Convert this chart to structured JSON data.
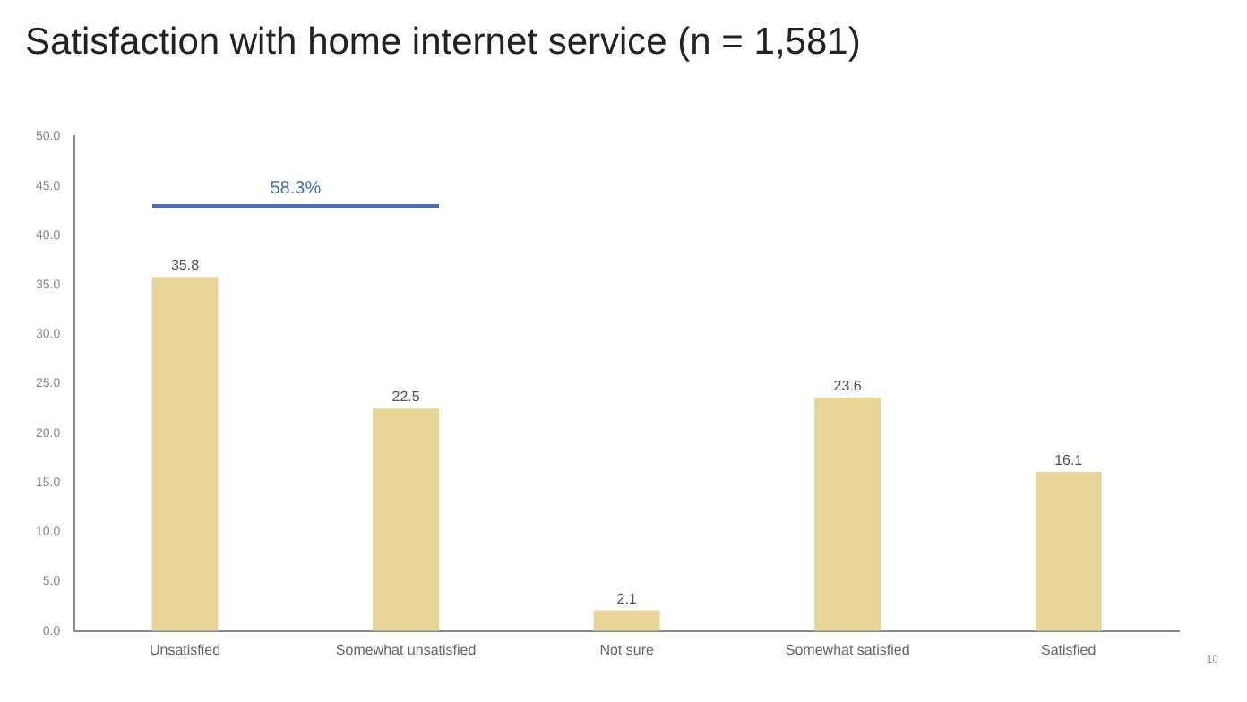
{
  "chart_data": {
    "type": "bar",
    "title": "Satisfaction with home internet service (n = 1,581)",
    "categories": [
      "Unsatisfied",
      "Somewhat unsatisfied",
      "Not sure",
      "Somewhat satisfied",
      "Satisfied"
    ],
    "values": [
      35.8,
      22.5,
      2.1,
      23.6,
      16.1
    ],
    "color": "#e8d59a",
    "ylim": [
      0,
      50
    ],
    "yticks": [
      {
        "value": 0,
        "label": "0.0"
      },
      {
        "value": 5,
        "label": "5.0"
      },
      {
        "value": 10,
        "label": "10.0"
      },
      {
        "value": 15,
        "label": "15.0"
      },
      {
        "value": 20,
        "label": "20.0"
      },
      {
        "value": 25,
        "label": "25.0"
      },
      {
        "value": 30,
        "label": "30.0"
      },
      {
        "value": 35,
        "label": "35.0"
      },
      {
        "value": 40,
        "label": "40.0"
      },
      {
        "value": 45,
        "label": "45.0"
      },
      {
        "value": 50,
        "label": "50.0"
      }
    ],
    "grid": false,
    "data_labels": true,
    "annotations": [
      "58.3%",
      "10"
    ]
  }
}
